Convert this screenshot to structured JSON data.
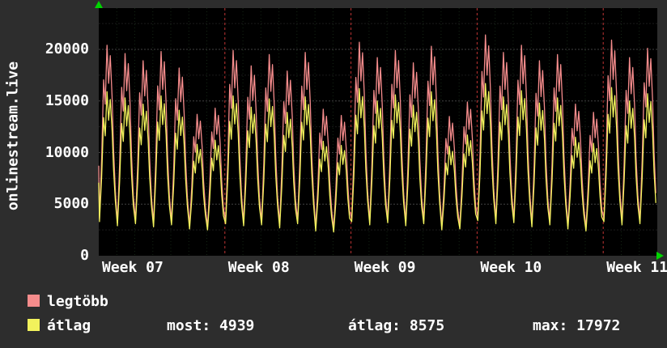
{
  "colors": {
    "background": "#2d2d2d",
    "plot_background": "#000000",
    "text": "#ffffff",
    "week_grid": "rgba(255,70,70,0.75)",
    "day_grid": "rgba(110,210,110,0.18)",
    "minor_hgrid": "rgba(255,255,255,0.10)",
    "major_hgrid": "rgba(255,255,255,0.26)",
    "arrow": "#00d400"
  },
  "legend": {
    "items": [
      {
        "label": "legtöbb",
        "color": "#f58c8c"
      },
      {
        "label": "átlag",
        "color": "#f2f25c"
      }
    ],
    "stats": [
      {
        "text": "most: 4939"
      },
      {
        "text": "átlag: 8575"
      },
      {
        "text": "max: 17972"
      }
    ]
  },
  "chart_data": {
    "type": "line",
    "title": "",
    "xlabel": "",
    "ylabel": "onlinestream.live",
    "ylim": [
      0,
      24000
    ],
    "y_ticks": [
      0,
      5000,
      10000,
      15000,
      20000
    ],
    "x_tick_labels": [
      "Week 07",
      "Week 08",
      "Week 09",
      "Week 10",
      "Week 11"
    ],
    "days_shown": 31,
    "grid": true,
    "legend_position": "bottom-left",
    "stats": {
      "most": 4939,
      "atlag": 8575,
      "max": 17972
    },
    "series": [
      {
        "name": "legtöbb",
        "color": "#f58c8c",
        "trough_offset": 300,
        "day_peaks": [
          20400,
          19600,
          18900,
          19800,
          18200,
          13700,
          14300,
          19900,
          18400,
          19500,
          17900,
          19700,
          14200,
          13600,
          20700,
          19200,
          19900,
          18700,
          20300,
          13500,
          14900,
          21400,
          19700,
          20400,
          18900,
          19500,
          14700,
          13900,
          20900,
          19200,
          20100
        ]
      },
      {
        "name": "átlag",
        "color": "#f2f25c",
        "trough_offset": 0,
        "day_peaks": [
          15900,
          15300,
          14700,
          15500,
          14100,
          10800,
          11200,
          15500,
          14400,
          15200,
          13900,
          15400,
          11100,
          10700,
          16200,
          15000,
          15600,
          14600,
          15900,
          10600,
          11700,
          16700,
          15400,
          16000,
          14800,
          15300,
          11500,
          10900,
          16300,
          15000,
          15700
        ]
      }
    ],
    "day_troughs": [
      3300,
      2900,
      3100,
      2800,
      3000,
      2600,
      2500,
      3100,
      2900,
      3000,
      2700,
      3100,
      2400,
      2300,
      3300,
      3000,
      3200,
      2900,
      3100,
      2500,
      2600,
      3400,
      3100,
      3200,
      2800,
      3000,
      2600,
      2400,
      3300,
      3000,
      3100,
      2900
    ]
  }
}
